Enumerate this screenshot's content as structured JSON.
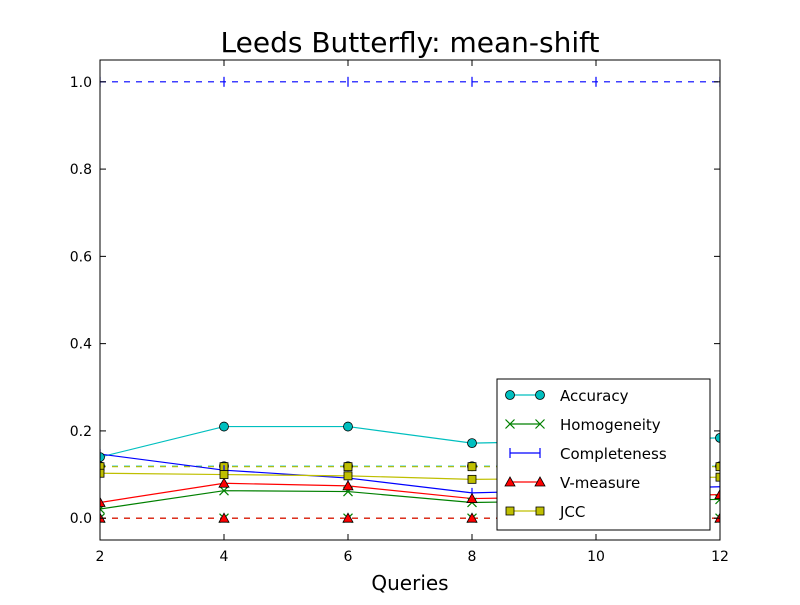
{
  "chart_data": {
    "type": "line",
    "title": "Leeds Butterfly: mean-shift",
    "xlabel": "Queries",
    "ylabel": "",
    "xlim": [
      2,
      12
    ],
    "ylim": [
      -0.05,
      1.05
    ],
    "x_ticks": [
      2,
      4,
      6,
      8,
      10,
      12
    ],
    "y_ticks": [
      0.0,
      0.2,
      0.4,
      0.6,
      0.8,
      1.0
    ],
    "x_tick_labels": [
      "2",
      "4",
      "6",
      "8",
      "10",
      "12"
    ],
    "y_tick_labels": [
      "0.0",
      "0.2",
      "0.4",
      "0.6",
      "0.8",
      "1.0"
    ],
    "grid": false,
    "legend_position": "lower-right",
    "series": [
      {
        "name": "Accuracy",
        "color": "#00bfbf",
        "marker": "circle",
        "x": [
          2,
          4,
          6,
          8,
          10,
          12
        ],
        "values": [
          0.14,
          0.21,
          0.21,
          0.172,
          0.178,
          0.184
        ]
      },
      {
        "name": "Homogeneity",
        "color": "#008000",
        "marker": "x",
        "x": [
          2,
          4,
          6,
          8,
          10,
          12
        ],
        "values": [
          0.021,
          0.063,
          0.061,
          0.036,
          0.04,
          0.043
        ]
      },
      {
        "name": "Completeness",
        "color": "#0000ff",
        "marker": "vline",
        "x": [
          2,
          4,
          6,
          8,
          10,
          12
        ],
        "values": [
          0.147,
          0.11,
          0.092,
          0.058,
          0.065,
          0.072
        ]
      },
      {
        "name": "V-measure",
        "color": "#ff0000",
        "marker": "triangle",
        "x": [
          2,
          4,
          6,
          8,
          10,
          12
        ],
        "values": [
          0.036,
          0.08,
          0.074,
          0.045,
          0.049,
          0.054
        ]
      },
      {
        "name": "JCC",
        "color": "#bfbf00",
        "marker": "square",
        "x": [
          2,
          4,
          6,
          8,
          10,
          12
        ],
        "values": [
          0.103,
          0.1,
          0.097,
          0.089,
          0.091,
          0.094
        ]
      }
    ],
    "baselines": [
      {
        "series": "Accuracy",
        "color": "#00bfbf",
        "marker": "circle",
        "style": "dashed",
        "value": 0.119,
        "x": [
          2,
          4,
          6,
          8,
          10,
          12
        ]
      },
      {
        "series": "Homogeneity",
        "color": "#008000",
        "marker": "x",
        "style": "dashed",
        "value": 0.0,
        "x": [
          2,
          4,
          6,
          8,
          10,
          12
        ]
      },
      {
        "series": "Completeness",
        "color": "#0000ff",
        "marker": "vline",
        "style": "dashed",
        "value": 1.0,
        "x": [
          2,
          4,
          6,
          8,
          10,
          12
        ]
      },
      {
        "series": "V-measure",
        "color": "#ff0000",
        "marker": "triangle",
        "style": "dashed",
        "value": 0.0,
        "x": [
          2,
          4,
          6,
          8,
          10,
          12
        ]
      },
      {
        "series": "JCC",
        "color": "#bfbf00",
        "marker": "square",
        "style": "dashed",
        "value": 0.118,
        "x": [
          2,
          4,
          6,
          8,
          10,
          12
        ]
      }
    ]
  }
}
